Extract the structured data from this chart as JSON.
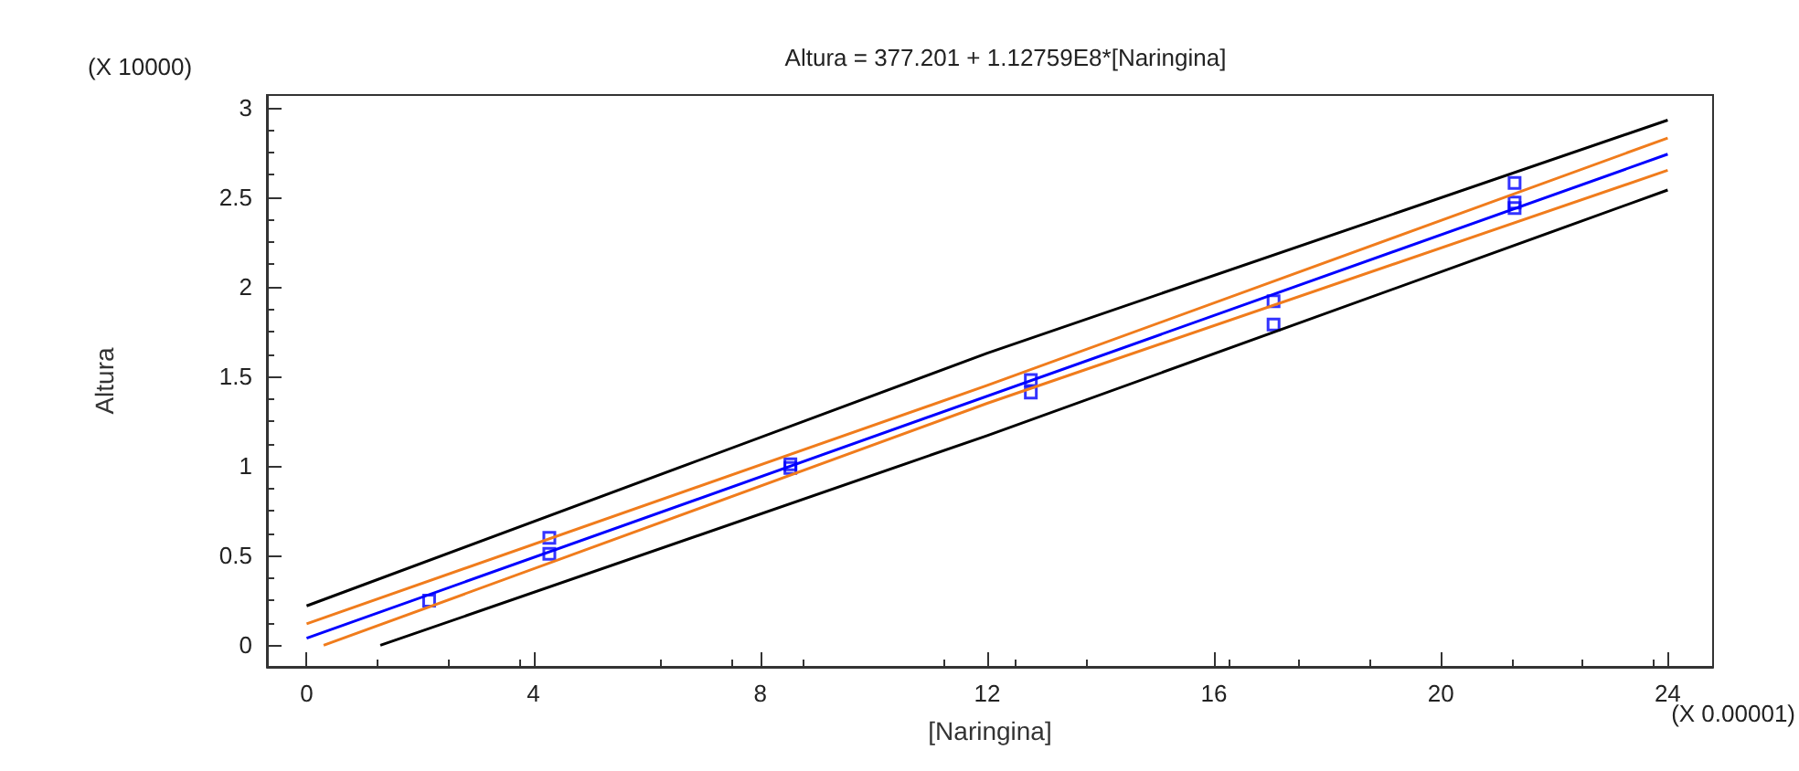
{
  "chart_data": {
    "type": "scatter",
    "title": "Altura = 377.201 + 1.12759E8*[Naringina]",
    "xlabel": "[Naringina]",
    "ylabel": "Altura",
    "annotations": [
      "(X 10000)",
      "(X 0.00001)"
    ],
    "xlim": [
      -0.7,
      24.8
    ],
    "xticks": [
      0,
      4,
      8,
      12,
      16,
      20,
      24
    ],
    "ylim": [
      -0.12,
      3.07
    ],
    "yticks": [
      0,
      0.5,
      1,
      1.5,
      2,
      2.5,
      3
    ],
    "grid": false,
    "series": [
      {
        "marker": "square",
        "color": "#0000ff",
        "x": [
          2.16,
          4.28,
          4.28,
          8.53,
          8.53,
          12.77,
          12.77,
          17.05,
          17.05,
          21.3,
          21.3,
          21.3
        ],
        "values": [
          0.25,
          0.6,
          0.51,
          1.01,
          0.99,
          1.48,
          1.41,
          1.92,
          1.79,
          2.58,
          2.47,
          2.44
        ]
      },
      {
        "type": "line",
        "marker": "none",
        "line_style": "solid",
        "color": "#0000ff",
        "x": [
          0,
          24
        ],
        "values": [
          0.04,
          2.74
        ]
      },
      {
        "type": "line",
        "marker": "none",
        "line_style": "solid",
        "color": "#f07c1c",
        "x": [
          0,
          12,
          24
        ],
        "values": [
          0.12,
          1.45,
          2.83
        ]
      },
      {
        "type": "line",
        "marker": "none",
        "line_style": "solid",
        "color": "#f07c1c",
        "x": [
          0.3,
          12,
          24
        ],
        "values": [
          0.0,
          1.35,
          2.65
        ]
      },
      {
        "type": "line",
        "marker": "none",
        "line_style": "solid",
        "color": "#000000",
        "x": [
          0,
          12,
          24
        ],
        "values": [
          0.22,
          1.63,
          2.93
        ]
      },
      {
        "type": "line",
        "marker": "none",
        "line_style": "solid",
        "color": "#000000",
        "x": [
          1.3,
          12,
          24
        ],
        "values": [
          0.0,
          1.17,
          2.54
        ]
      }
    ]
  }
}
